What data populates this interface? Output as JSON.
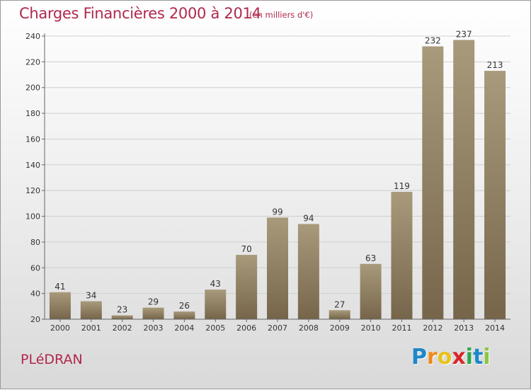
{
  "header": {
    "title": "Charges Financières 2000 à 2014",
    "subtitle": "(en milliers d'€)"
  },
  "footer": {
    "commune": "PLéDRAN",
    "logo_text": "Proxiti",
    "logo_letters": [
      {
        "char": "P",
        "color": "#1e88c8"
      },
      {
        "char": "r",
        "color": "#f08a1c"
      },
      {
        "char": "o",
        "color": "#e8c21a"
      },
      {
        "char": "x",
        "color": "#d8262a"
      },
      {
        "char": "i",
        "color": "#2aa84a"
      },
      {
        "char": "t",
        "color": "#1e88c8"
      },
      {
        "char": "i",
        "color": "#8cc63e"
      }
    ]
  },
  "colors": {
    "accent": "#b0284c",
    "bar_top": "#a99a7c",
    "bar_bottom": "#76654a",
    "grid": "#cfcfcf",
    "axis_text": "#333333"
  },
  "chart_data": {
    "type": "bar",
    "categories": [
      "2000",
      "2001",
      "2002",
      "2003",
      "2004",
      "2005",
      "2006",
      "2007",
      "2008",
      "2009",
      "2010",
      "2011",
      "2012",
      "2013",
      "2014"
    ],
    "values": [
      41,
      34,
      23,
      29,
      26,
      43,
      70,
      99,
      94,
      27,
      63,
      119,
      232,
      237,
      213
    ],
    "ylim": [
      20,
      240
    ],
    "yticks": [
      20,
      40,
      60,
      80,
      100,
      120,
      140,
      160,
      180,
      200,
      220,
      240
    ],
    "grid": true,
    "data_labels": true
  }
}
